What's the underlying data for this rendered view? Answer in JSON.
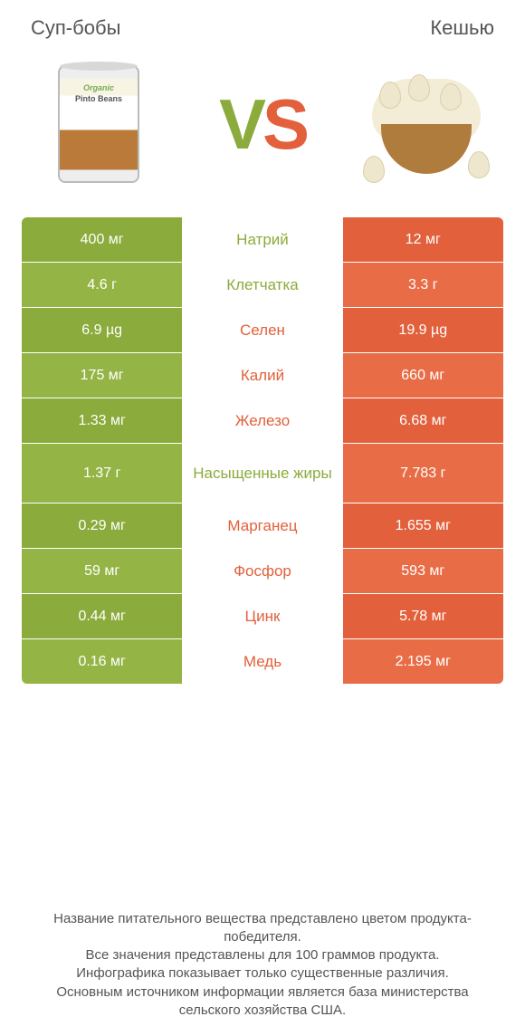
{
  "colors": {
    "left_series": "#8bab3c",
    "left_series_alt": "#94b545",
    "right_series": "#e2603b",
    "right_series_alt": "#e86d47",
    "mid_label_left_win": "#8bab3c",
    "mid_label_right_win": "#e2603b",
    "text_dark": "#555555",
    "background": "#ffffff"
  },
  "header": {
    "left_title": "Суп-бобы",
    "right_title": "Кешью",
    "vs_v": "V",
    "vs_s": "S"
  },
  "nutrients": [
    {
      "name": "Натрий",
      "left": "400 мг",
      "right": "12 мг",
      "winner": "left"
    },
    {
      "name": "Клетчатка",
      "left": "4.6 г",
      "right": "3.3 г",
      "winner": "left"
    },
    {
      "name": "Селен",
      "left": "6.9 µg",
      "right": "19.9 µg",
      "winner": "right"
    },
    {
      "name": "Калий",
      "left": "175 мг",
      "right": "660 мг",
      "winner": "right"
    },
    {
      "name": "Железо",
      "left": "1.33 мг",
      "right": "6.68 мг",
      "winner": "right"
    },
    {
      "name": "Насыщенные жиры",
      "left": "1.37 г",
      "right": "7.783 г",
      "winner": "left",
      "tall": true
    },
    {
      "name": "Марганец",
      "left": "0.29 мг",
      "right": "1.655 мг",
      "winner": "right"
    },
    {
      "name": "Фосфор",
      "left": "59 мг",
      "right": "593 мг",
      "winner": "right"
    },
    {
      "name": "Цинк",
      "left": "0.44 мг",
      "right": "5.78 мг",
      "winner": "right"
    },
    {
      "name": "Медь",
      "left": "0.16 мг",
      "right": "2.195 мг",
      "winner": "right"
    }
  ],
  "footer": {
    "line1": "Название питательного вещества представлено цветом продукта-победителя.",
    "line2": "Все значения представлены для 100 граммов продукта.",
    "line3": "Инфографика показывает только существенные различия.",
    "line4": "Основным источником информации является база министерства сельского хозяйства США."
  }
}
